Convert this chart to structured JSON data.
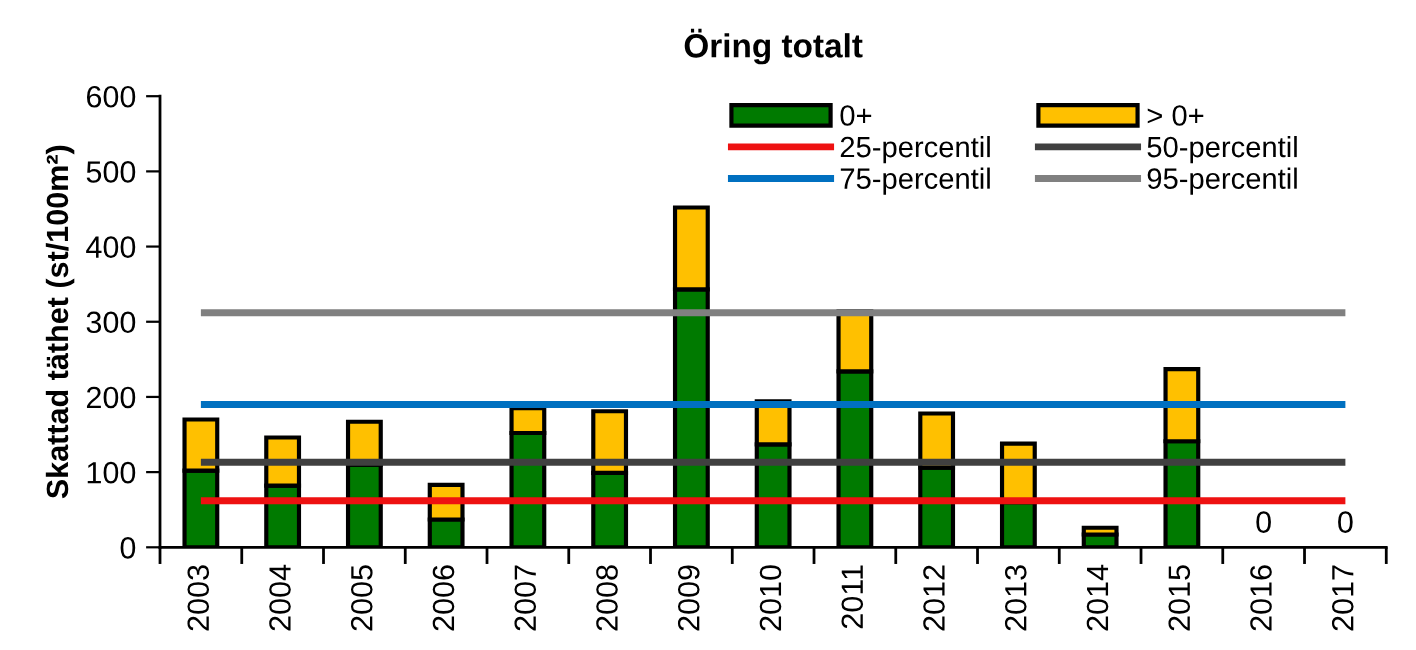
{
  "chart_data": {
    "type": "bar",
    "title": "Öring totalt",
    "ylabel": "Skattad täthet (st/100m²)",
    "categories": [
      "2003",
      "2004",
      "2005",
      "2006",
      "2007",
      "2008",
      "2009",
      "2010",
      "2011",
      "2012",
      "2013",
      "2014",
      "2015",
      "2016",
      "2017"
    ],
    "stacked": true,
    "series": [
      {
        "name": "0+",
        "color": "#007a00",
        "values": [
          102,
          82,
          110,
          37,
          152,
          99,
          343,
          137,
          234,
          106,
          60,
          17,
          141,
          0,
          0
        ],
        "value_labels": [
          null,
          null,
          null,
          null,
          null,
          null,
          null,
          null,
          null,
          null,
          null,
          null,
          null,
          "0",
          "0"
        ]
      },
      {
        "name": "> 0+",
        "color": "#ffc000",
        "values": [
          68,
          64,
          57,
          46,
          33,
          82,
          109,
          57,
          80,
          72,
          78,
          9,
          96,
          0,
          0
        ]
      }
    ],
    "ylim": [
      0,
      600
    ],
    "yticks": [
      0,
      100,
      200,
      300,
      400,
      500,
      600
    ],
    "ref_lines": [
      {
        "axis": "y",
        "value": 62,
        "label": "25-percentil",
        "color": "#ee1111"
      },
      {
        "axis": "y",
        "value": 113,
        "label": "50-percentil",
        "color": "#404040"
      },
      {
        "axis": "y",
        "value": 190,
        "label": "75-percentil",
        "color": "#0070c0"
      },
      {
        "axis": "y",
        "value": 312,
        "label": "95-percentil",
        "color": "#808080"
      }
    ],
    "legend": "top right",
    "grid": false
  }
}
